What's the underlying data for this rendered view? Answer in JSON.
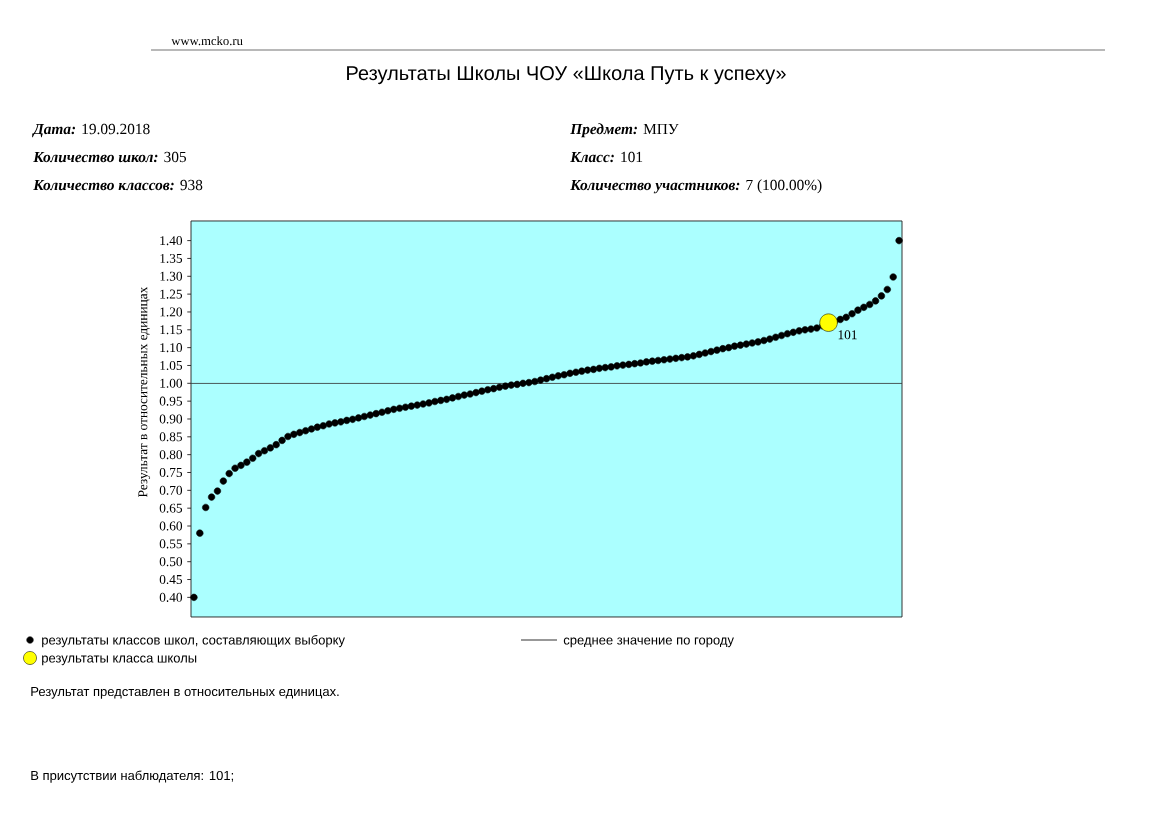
{
  "chart_data": {
    "type": "scatter",
    "title": "Результаты Школы ЧОУ «Школа Путь к успеху»",
    "ylabel": "Результат в относительных единицах",
    "annotations": [
      "www.mcko.ru",
      "**Дата:** 19.09.2018",
      "**Предмет:** МПУ",
      "**Количество школ:** 305",
      "**Класс:** 101",
      "**Количество классов:** 938",
      "**Количество участников:** 7 (100.00%)",
      "Результат представлен в относительных единицах.",
      "В присутствии наблюдателя: 101;",
      {
        "text": "101",
        "y": 1.17
      }
    ],
    "categories": [
      null,
      null,
      null,
      null,
      null,
      null,
      null,
      null,
      null,
      null,
      null,
      null,
      null,
      null,
      null,
      null,
      null,
      null,
      null,
      null,
      null,
      null,
      null,
      null,
      null,
      null,
      null,
      null,
      null,
      null,
      null,
      null,
      null,
      null,
      null,
      null,
      null,
      null,
      null,
      null,
      null,
      null,
      null,
      null,
      null,
      null,
      null,
      null,
      null,
      null,
      null,
      null,
      null,
      null,
      null,
      null,
      null,
      null,
      null,
      null,
      null,
      null,
      null,
      null,
      null,
      null,
      null,
      null,
      null,
      null,
      null,
      null,
      null,
      null,
      null,
      null,
      null,
      null,
      null,
      null,
      null,
      null,
      null,
      null,
      null,
      null,
      null,
      null,
      null,
      null,
      null,
      null,
      null,
      null,
      null,
      null,
      null,
      null,
      null,
      null,
      null,
      null,
      null,
      null,
      null,
      null,
      null,
      null,
      null,
      null,
      null,
      null,
      null,
      null,
      null,
      null,
      null,
      null,
      null,
      null,
      null
    ],
    "series": [
      {
        "name": "результаты классов школ, составляющих выборку",
        "color": "#000000",
        "values": [
          0.4,
          0.58,
          0.652,
          0.681,
          0.698,
          0.726,
          0.747,
          0.762,
          0.77,
          0.779,
          0.79,
          0.803,
          0.811,
          0.819,
          0.828,
          0.84,
          0.851,
          0.857,
          0.862,
          0.867,
          0.872,
          0.877,
          0.881,
          0.886,
          0.889,
          0.892,
          0.896,
          0.899,
          0.903,
          0.907,
          0.911,
          0.915,
          0.919,
          0.923,
          0.927,
          0.93,
          0.933,
          0.936,
          0.939,
          0.942,
          0.945,
          0.949,
          0.952,
          0.955,
          0.959,
          0.963,
          0.967,
          0.97,
          0.974,
          0.978,
          0.982,
          0.985,
          0.989,
          0.992,
          0.995,
          0.997,
          1.0,
          1.002,
          1.005,
          1.009,
          1.013,
          1.017,
          1.021,
          1.024,
          1.028,
          1.031,
          1.034,
          1.037,
          1.039,
          1.042,
          1.044,
          1.046,
          1.049,
          1.051,
          1.053,
          1.055,
          1.057,
          1.06,
          1.062,
          1.064,
          1.066,
          1.068,
          1.07,
          1.072,
          1.074,
          1.077,
          1.081,
          1.085,
          1.089,
          1.093,
          1.097,
          1.1,
          1.104,
          1.107,
          1.11,
          1.113,
          1.116,
          1.12,
          1.124,
          1.129,
          1.134,
          1.139,
          1.143,
          1.147,
          1.15,
          1.152,
          1.155,
          1.161,
          null,
          1.173,
          1.179,
          1.185,
          1.195,
          1.205,
          1.213,
          1.221,
          1.231,
          1.245,
          1.263,
          1.298,
          1.4
        ]
      },
      {
        "name": "результаты класса школы",
        "color": "#ffff00",
        "values": [
          null,
          null,
          null,
          null,
          null,
          null,
          null,
          null,
          null,
          null,
          null,
          null,
          null,
          null,
          null,
          null,
          null,
          null,
          null,
          null,
          null,
          null,
          null,
          null,
          null,
          null,
          null,
          null,
          null,
          null,
          null,
          null,
          null,
          null,
          null,
          null,
          null,
          null,
          null,
          null,
          null,
          null,
          null,
          null,
          null,
          null,
          null,
          null,
          null,
          null,
          null,
          null,
          null,
          null,
          null,
          null,
          null,
          null,
          null,
          null,
          null,
          null,
          null,
          null,
          null,
          null,
          null,
          null,
          null,
          null,
          null,
          null,
          null,
          null,
          null,
          null,
          null,
          null,
          null,
          null,
          null,
          null,
          null,
          null,
          null,
          null,
          null,
          null,
          null,
          null,
          null,
          null,
          null,
          null,
          null,
          null,
          null,
          null,
          null,
          null,
          null,
          null,
          null,
          null,
          null,
          null,
          null,
          null,
          1.17,
          null,
          null,
          null,
          null,
          null,
          null,
          null,
          null,
          null,
          null,
          null,
          null
        ]
      }
    ],
    "ylim": [
      0.345,
      1.455
    ],
    "yticks": [
      {
        "value": 0.4,
        "label": "0.40"
      },
      {
        "value": 0.45,
        "label": "0.45"
      },
      {
        "value": 0.5,
        "label": "0.50"
      },
      {
        "value": 0.55,
        "label": "0.55"
      },
      {
        "value": 0.6,
        "label": "0.60"
      },
      {
        "value": 0.65,
        "label": "0.65"
      },
      {
        "value": 0.7,
        "label": "0.70"
      },
      {
        "value": 0.75,
        "label": "0.75"
      },
      {
        "value": 0.8,
        "label": "0.80"
      },
      {
        "value": 0.85,
        "label": "0.85"
      },
      {
        "value": 0.9,
        "label": "0.90"
      },
      {
        "value": 0.95,
        "label": "0.95"
      },
      {
        "value": 1.0,
        "label": "1.00"
      },
      {
        "value": 1.05,
        "label": "1.05"
      },
      {
        "value": 1.1,
        "label": "1.10"
      },
      {
        "value": 1.15,
        "label": "1.15"
      },
      {
        "value": 1.2,
        "label": "1.20"
      },
      {
        "value": 1.25,
        "label": "1.25"
      },
      {
        "value": 1.3,
        "label": "1.30"
      },
      {
        "value": 1.35,
        "label": "1.35"
      },
      {
        "value": 1.4,
        "label": "1.40"
      }
    ],
    "ref_lines": [
      {
        "axis": "y",
        "value": 1.0,
        "label": "среднее значение по городу",
        "color": "#333333"
      }
    ],
    "legend": "bottom",
    "marker": "circle",
    "tick_labels": "y"
  }
}
